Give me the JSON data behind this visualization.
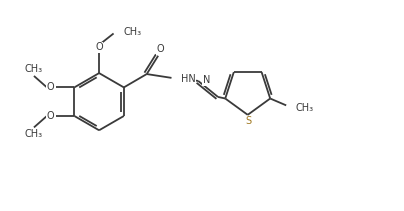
{
  "bg_color": "#ffffff",
  "bond_color": "#3a3a3a",
  "S_color": "#a07820",
  "linewidth": 1.3,
  "fontsize": 7.0,
  "fig_width": 4.04,
  "fig_height": 2.11,
  "dpi": 100,
  "xlim": [
    0,
    10.5
  ],
  "ylim": [
    0,
    5.5
  ]
}
